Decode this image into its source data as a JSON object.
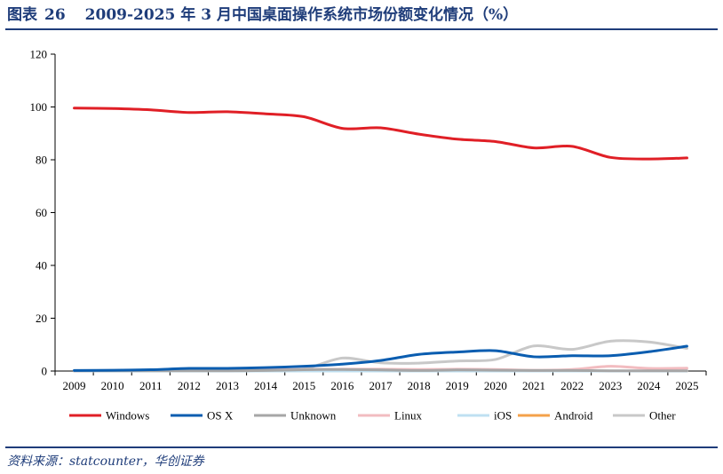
{
  "figure": {
    "label": "图表",
    "number": "26",
    "title": "2009-2025 年 3 月中国桌面操作系统市场份额变化情况（%）"
  },
  "source": "资料来源：statcounter，华创证券",
  "chart_data": {
    "type": "line",
    "x": [
      "2009",
      "2010",
      "2011",
      "2012",
      "2013",
      "2014",
      "2015",
      "2016",
      "2017",
      "2018",
      "2019",
      "2020",
      "2021",
      "2022",
      "2023",
      "2024",
      "2025"
    ],
    "ylim": [
      0,
      120
    ],
    "yticks": [
      0,
      20,
      40,
      60,
      80,
      100,
      120
    ],
    "legend_position": "bottom",
    "grid": false,
    "series": [
      {
        "name": "Windows",
        "color": "#e01f26",
        "values": [
          99.6,
          99.4,
          98.9,
          97.9,
          98.2,
          97.4,
          96.3,
          91.9,
          92.1,
          89.7,
          87.8,
          86.9,
          84.5,
          85.1,
          80.9,
          80.3,
          80.7
        ]
      },
      {
        "name": "OS X",
        "color": "#0a5db0",
        "values": [
          0.2,
          0.3,
          0.5,
          1.0,
          1.0,
          1.3,
          1.8,
          2.6,
          4.0,
          6.3,
          7.2,
          7.7,
          5.4,
          5.8,
          5.8,
          7.3,
          9.4
        ]
      },
      {
        "name": "Unknown",
        "color": "#a6a6a6",
        "values": [
          0.1,
          0.1,
          0.1,
          0.1,
          0.1,
          0.2,
          0.5,
          0.6,
          0.4,
          0.2,
          0.4,
          0.3,
          0.2,
          0.2,
          0.1,
          0.1,
          0.1
        ]
      },
      {
        "name": "Linux",
        "color": "#f2bcc0",
        "values": [
          0.1,
          0.2,
          0.3,
          0.4,
          0.4,
          0.5,
          0.6,
          0.7,
          0.7,
          0.6,
          0.7,
          0.6,
          0.3,
          0.6,
          1.8,
          1.0,
          1.1
        ]
      },
      {
        "name": "iOS",
        "color": "#bfe0f2",
        "values": [
          0.0,
          0.0,
          0.0,
          0.0,
          0.0,
          0.0,
          0.0,
          0.0,
          0.0,
          0.0,
          0.0,
          0.0,
          0.0,
          0.0,
          0.0,
          0.0,
          0.0
        ]
      },
      {
        "name": "Android",
        "color": "#f4a24a",
        "values": [
          0.0,
          0.0,
          0.0,
          0.0,
          0.0,
          0.0,
          0.0,
          0.0,
          0.0,
          0.0,
          0.0,
          0.0,
          0.0,
          0.0,
          0.0,
          0.0,
          0.0
        ]
      },
      {
        "name": "Other",
        "color": "#c8c8c8",
        "values": [
          0.0,
          0.0,
          0.2,
          0.6,
          0.3,
          0.6,
          0.8,
          4.9,
          3.1,
          3.0,
          3.8,
          4.4,
          9.5,
          8.2,
          11.3,
          11.0,
          8.6
        ]
      }
    ]
  }
}
